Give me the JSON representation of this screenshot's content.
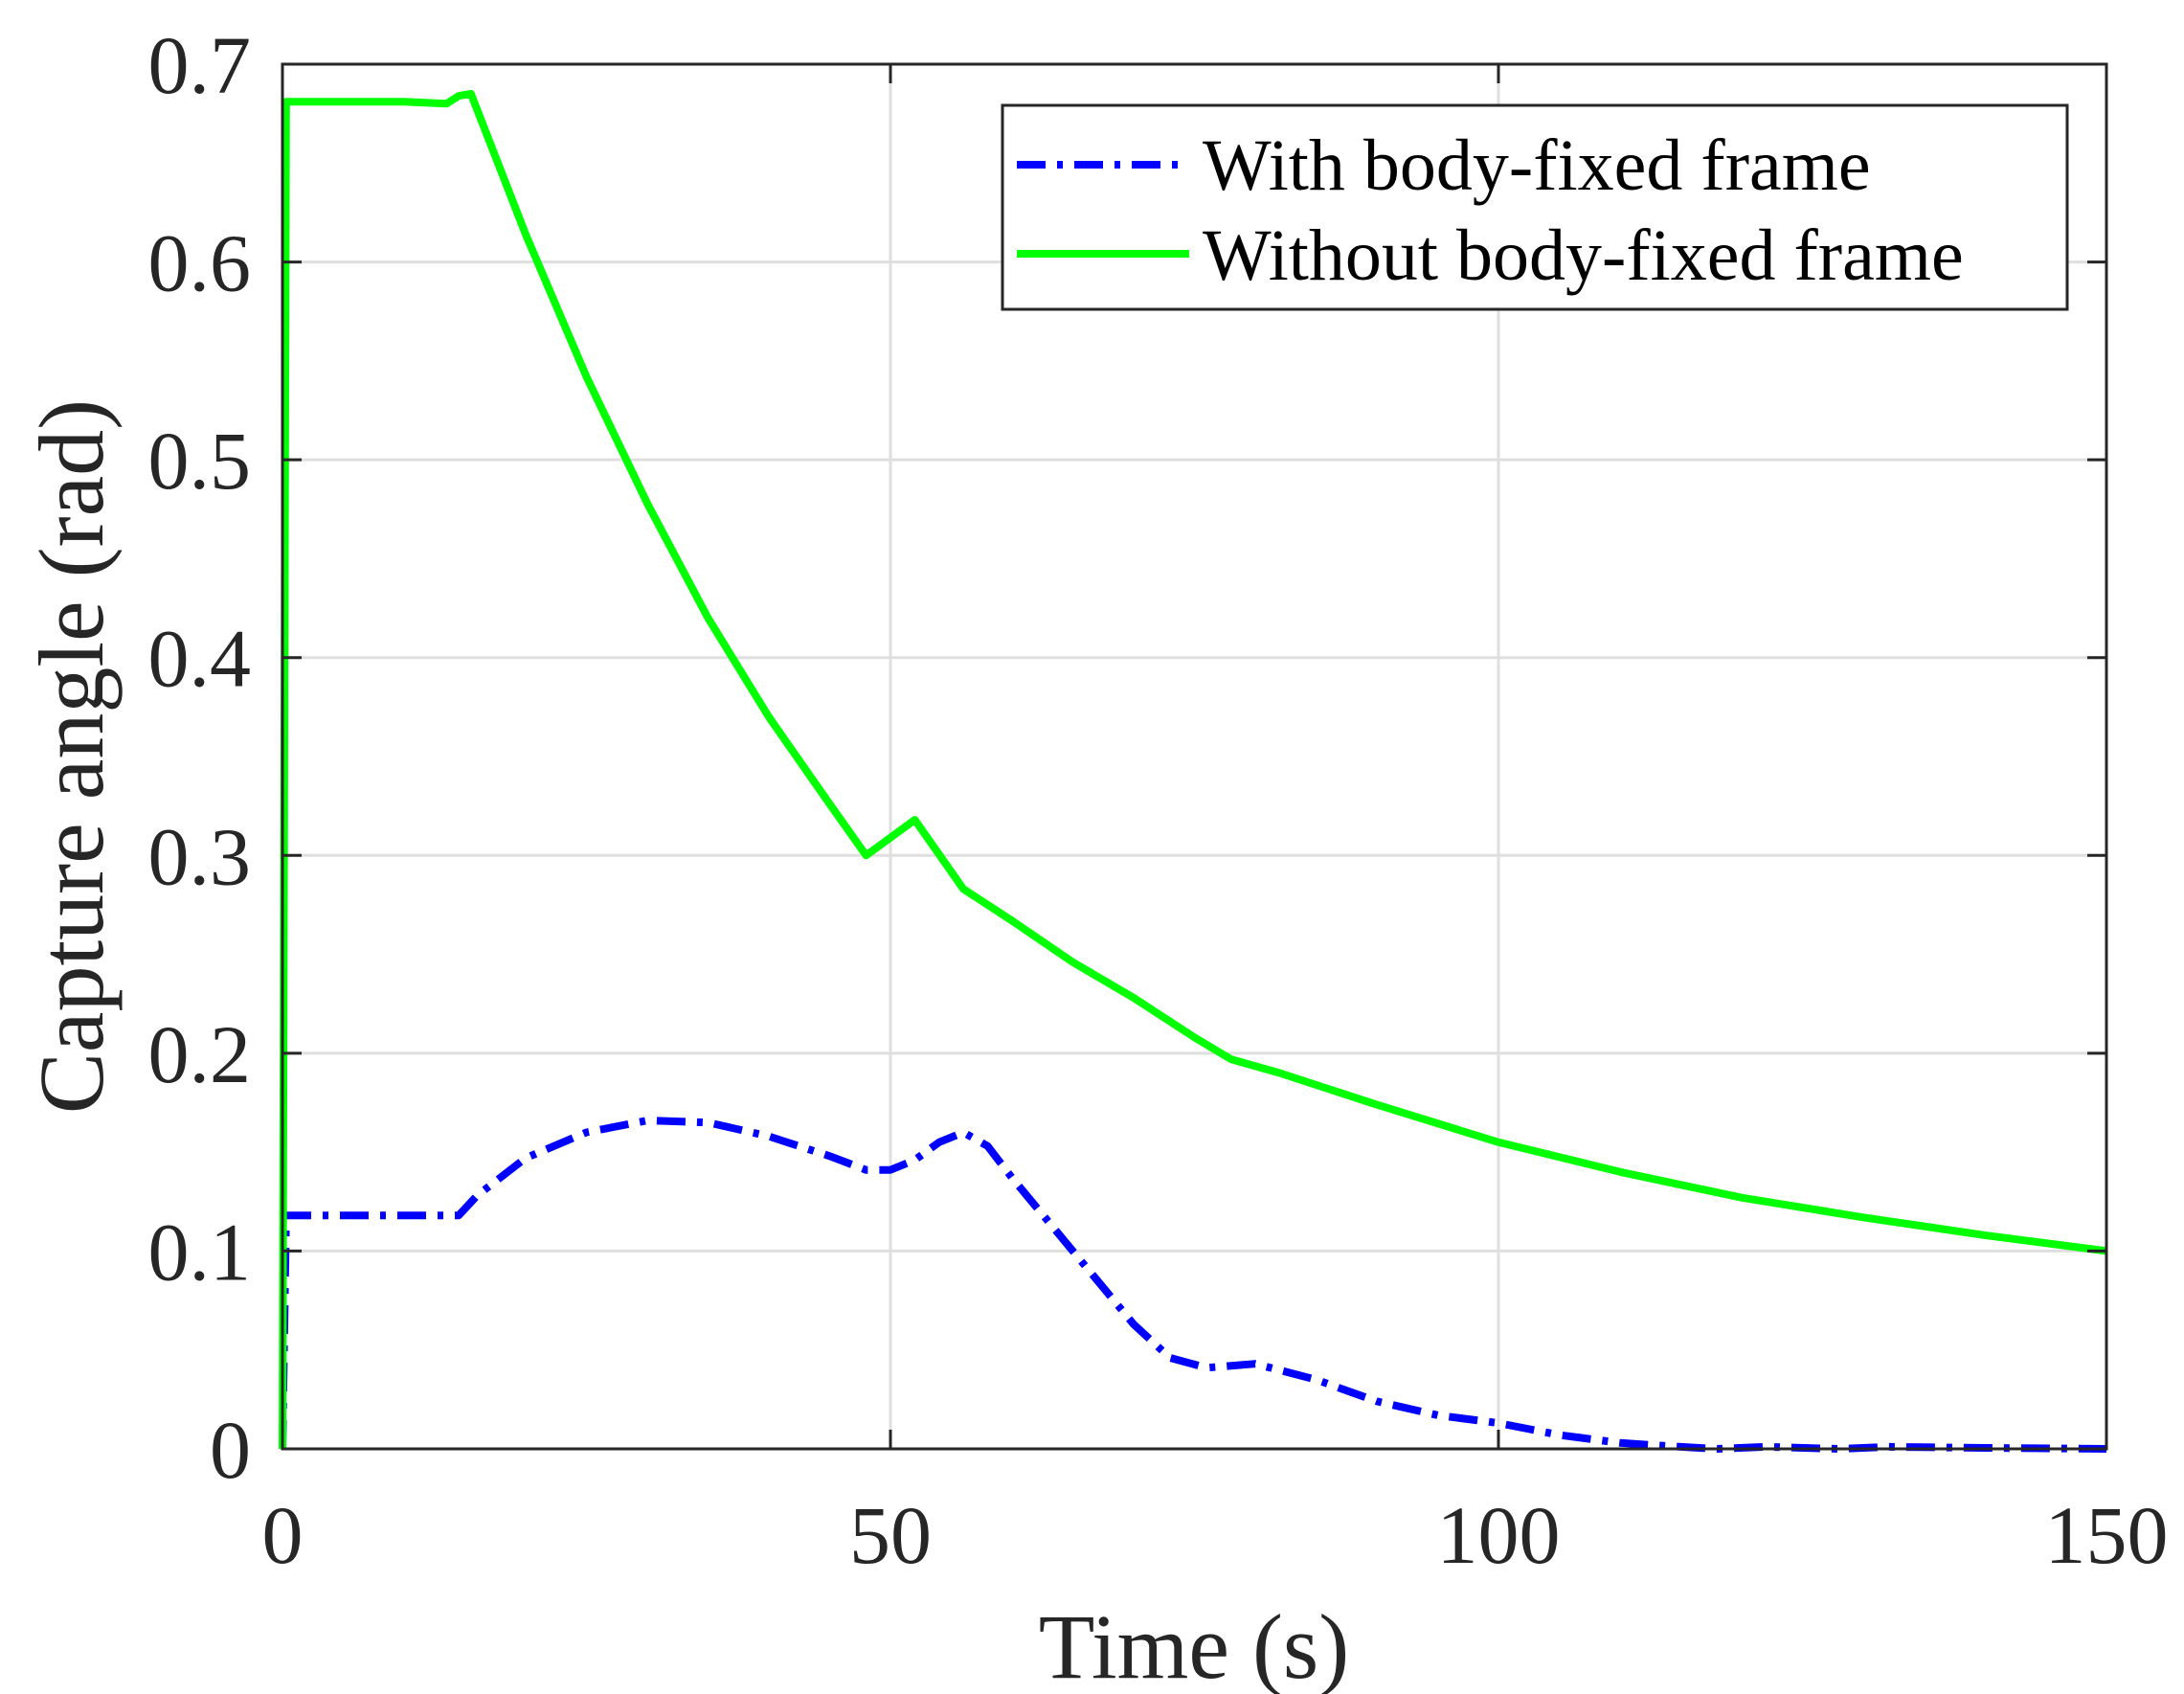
{
  "chart_data": {
    "type": "line",
    "xlabel": "Time (s)",
    "ylabel": "Capture angle (rad)",
    "xlim": [
      0,
      150
    ],
    "ylim": [
      0,
      0.7
    ],
    "xticks": [
      0,
      50,
      100,
      150
    ],
    "yticks": [
      0,
      0.1,
      0.2,
      0.3,
      0.4,
      0.5,
      0.6,
      0.7
    ],
    "xtick_labels": [
      "0",
      "50",
      "100",
      "150"
    ],
    "ytick_labels": [
      "0",
      "0.1",
      "0.2",
      "0.3",
      "0.4",
      "0.5",
      "0.6",
      "0.7"
    ],
    "grid": true,
    "legend_position": "top-right",
    "series": [
      {
        "name": "With body-fixed frame",
        "color": "#0000ff",
        "style": "dash-dot",
        "points": [
          [
            0,
            0
          ],
          [
            0.3,
            0.118
          ],
          [
            5,
            0.118
          ],
          [
            10,
            0.118
          ],
          [
            14.5,
            0.118
          ],
          [
            16,
            0.128
          ],
          [
            20,
            0.147
          ],
          [
            25,
            0.16
          ],
          [
            30,
            0.166
          ],
          [
            35,
            0.165
          ],
          [
            40,
            0.158
          ],
          [
            45,
            0.148
          ],
          [
            48,
            0.141
          ],
          [
            50,
            0.141
          ],
          [
            52,
            0.146
          ],
          [
            54,
            0.155
          ],
          [
            56,
            0.16
          ],
          [
            58,
            0.153
          ],
          [
            60,
            0.137
          ],
          [
            65,
            0.1
          ],
          [
            70,
            0.063
          ],
          [
            73,
            0.046
          ],
          [
            76,
            0.041
          ],
          [
            80,
            0.043
          ],
          [
            85,
            0.035
          ],
          [
            90,
            0.024
          ],
          [
            95,
            0.017
          ],
          [
            100,
            0.013
          ],
          [
            105,
            0.007
          ],
          [
            110,
            0.003
          ],
          [
            115,
            0.001
          ],
          [
            118,
            0
          ],
          [
            122,
            0.001
          ],
          [
            128,
            0
          ],
          [
            132,
            0.001
          ],
          [
            140,
            0.0005
          ],
          [
            150,
            0
          ]
        ]
      },
      {
        "name": "Without body-fixed frame",
        "color": "#00ff00",
        "style": "solid",
        "points": [
          [
            0,
            0
          ],
          [
            0.3,
            0.681
          ],
          [
            5,
            0.681
          ],
          [
            10,
            0.681
          ],
          [
            13.5,
            0.68
          ],
          [
            14.5,
            0.684
          ],
          [
            15.5,
            0.685
          ],
          [
            20,
            0.614
          ],
          [
            25,
            0.542
          ],
          [
            30,
            0.478
          ],
          [
            35,
            0.42
          ],
          [
            40,
            0.37
          ],
          [
            45,
            0.326
          ],
          [
            48,
            0.3
          ],
          [
            52,
            0.318
          ],
          [
            56,
            0.283
          ],
          [
            60,
            0.267
          ],
          [
            65,
            0.246
          ],
          [
            70,
            0.228
          ],
          [
            75,
            0.208
          ],
          [
            78,
            0.197
          ],
          [
            82,
            0.19
          ],
          [
            90,
            0.174
          ],
          [
            100,
            0.155
          ],
          [
            110,
            0.14
          ],
          [
            120,
            0.127
          ],
          [
            130,
            0.117
          ],
          [
            140,
            0.108
          ],
          [
            150,
            0.1
          ]
        ]
      }
    ]
  }
}
